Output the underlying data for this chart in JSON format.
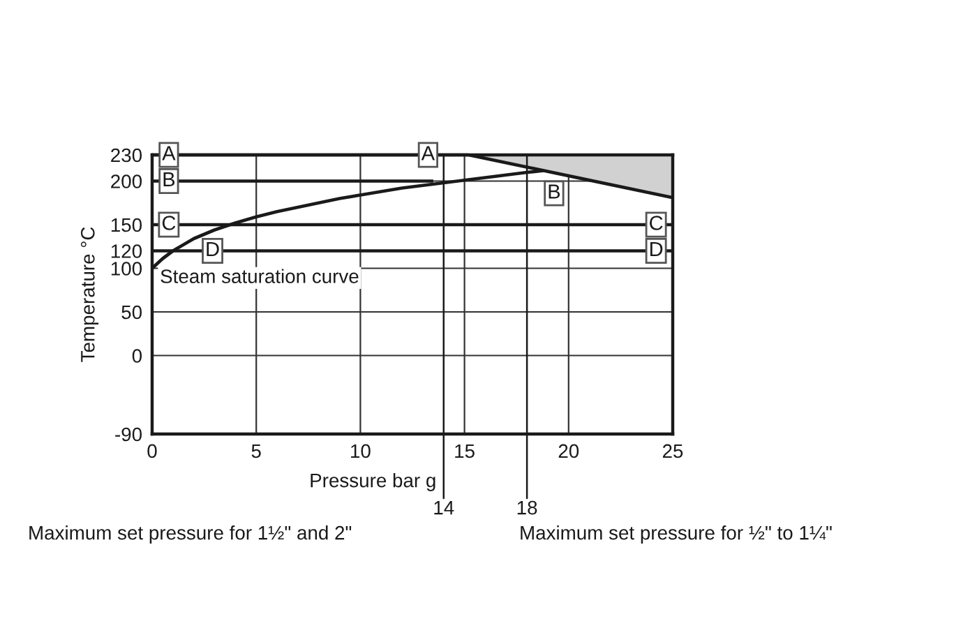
{
  "chart_data": {
    "type": "line",
    "xlabel": "Pressure bar g",
    "ylabel": "Temperature °C",
    "xlim": [
      0,
      25
    ],
    "ylim": [
      -90,
      230
    ],
    "xticks": [
      0,
      5,
      10,
      15,
      20,
      25
    ],
    "yticks": [
      230,
      200,
      150,
      120,
      100,
      50,
      0,
      -90
    ],
    "grid": true,
    "series": [
      {
        "name": "Steam saturation curve",
        "color": "#1a1a1a",
        "x": [
          0,
          0.5,
          1,
          2,
          3,
          4,
          5,
          6,
          7,
          8,
          9,
          10,
          11,
          12,
          13,
          14,
          15,
          16,
          17,
          18,
          18.8
        ],
        "values": [
          100,
          111,
          120,
          134,
          144,
          152,
          159,
          165,
          170,
          175,
          180,
          184,
          188,
          192,
          195,
          198,
          201,
          204,
          207,
          210,
          212
        ]
      },
      {
        "color": "#1a1a1a",
        "x": [
          15.2,
          25
        ],
        "values": [
          230,
          181
        ],
        "lower": [
          230,
          181
        ],
        "upper": [
          230,
          230
        ]
      },
      {
        "color": "#1a1a1a",
        "x": [
          0,
          15.2
        ],
        "values": [
          230,
          230
        ]
      },
      {
        "color": "#1a1a1a",
        "x": [
          0,
          13.5
        ],
        "values": [
          200,
          200
        ]
      },
      {
        "color": "#1a1a1a",
        "x": [
          0,
          25
        ],
        "values": [
          150,
          150
        ]
      },
      {
        "color": "#1a1a1a",
        "x": [
          0,
          25
        ],
        "values": [
          120,
          120
        ]
      }
    ],
    "ref_lines": [
      {
        "axis": "x",
        "value": 14,
        "label": "14",
        "color": "#1a1a1a"
      },
      {
        "axis": "x",
        "value": 18,
        "label": "18",
        "color": "#1a1a1a"
      }
    ],
    "annotations": [
      {
        "text": "A",
        "x": 0.8,
        "y": 230
      },
      {
        "text": "A",
        "x": 13.25,
        "y": 230
      },
      {
        "text": "B",
        "x": 0.8,
        "y": 200
      },
      {
        "text": "B",
        "x": 19.3,
        "y": 186
      },
      {
        "text": "C",
        "x": 0.8,
        "y": 150
      },
      {
        "text": "C",
        "x": 24.2,
        "y": 150
      },
      {
        "text": "D",
        "x": 2.9,
        "y": 120
      },
      {
        "text": "D",
        "x": 24.2,
        "y": 120
      },
      "Maximum set pressure for 1½\" and 2\"",
      "Maximum set pressure for ½\" to 1¼\""
    ]
  }
}
